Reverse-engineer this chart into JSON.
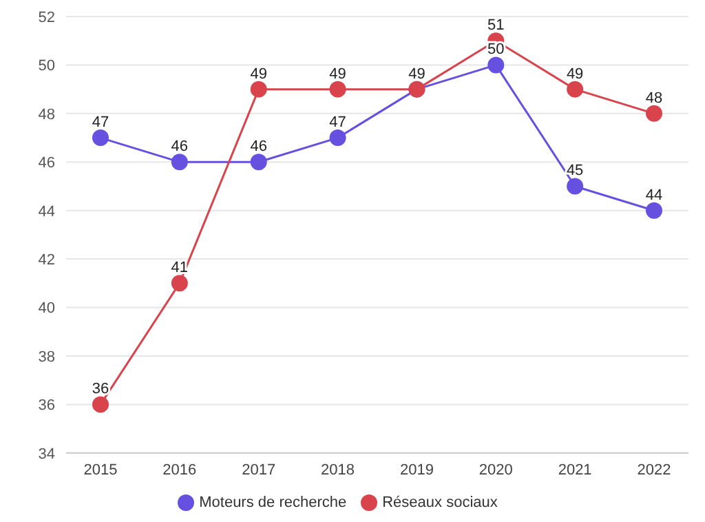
{
  "chart_data": {
    "type": "line",
    "categories": [
      "2015",
      "2016",
      "2017",
      "2018",
      "2019",
      "2020",
      "2021",
      "2022"
    ],
    "series": [
      {
        "name": "Moteurs de recherche",
        "color": "#6650e0",
        "values": [
          47,
          46,
          46,
          47,
          49,
          50,
          45,
          44
        ],
        "value_labels": [
          "47",
          "46",
          "46",
          "47",
          "49",
          "50",
          "45",
          "44"
        ]
      },
      {
        "name": "Réseaux sociaux",
        "color": "#d9434b",
        "values": [
          36,
          41,
          49,
          49,
          49,
          51,
          49,
          48
        ],
        "value_labels": [
          "36",
          "41",
          "49",
          "49",
          null,
          "51",
          "49",
          "48"
        ]
      }
    ],
    "ylim": [
      34,
      52
    ],
    "yticks": [
      34,
      36,
      38,
      40,
      42,
      44,
      46,
      48,
      50,
      52
    ],
    "grid": "y",
    "legend": "bottom",
    "marker": "circle",
    "line_style": "solid"
  }
}
